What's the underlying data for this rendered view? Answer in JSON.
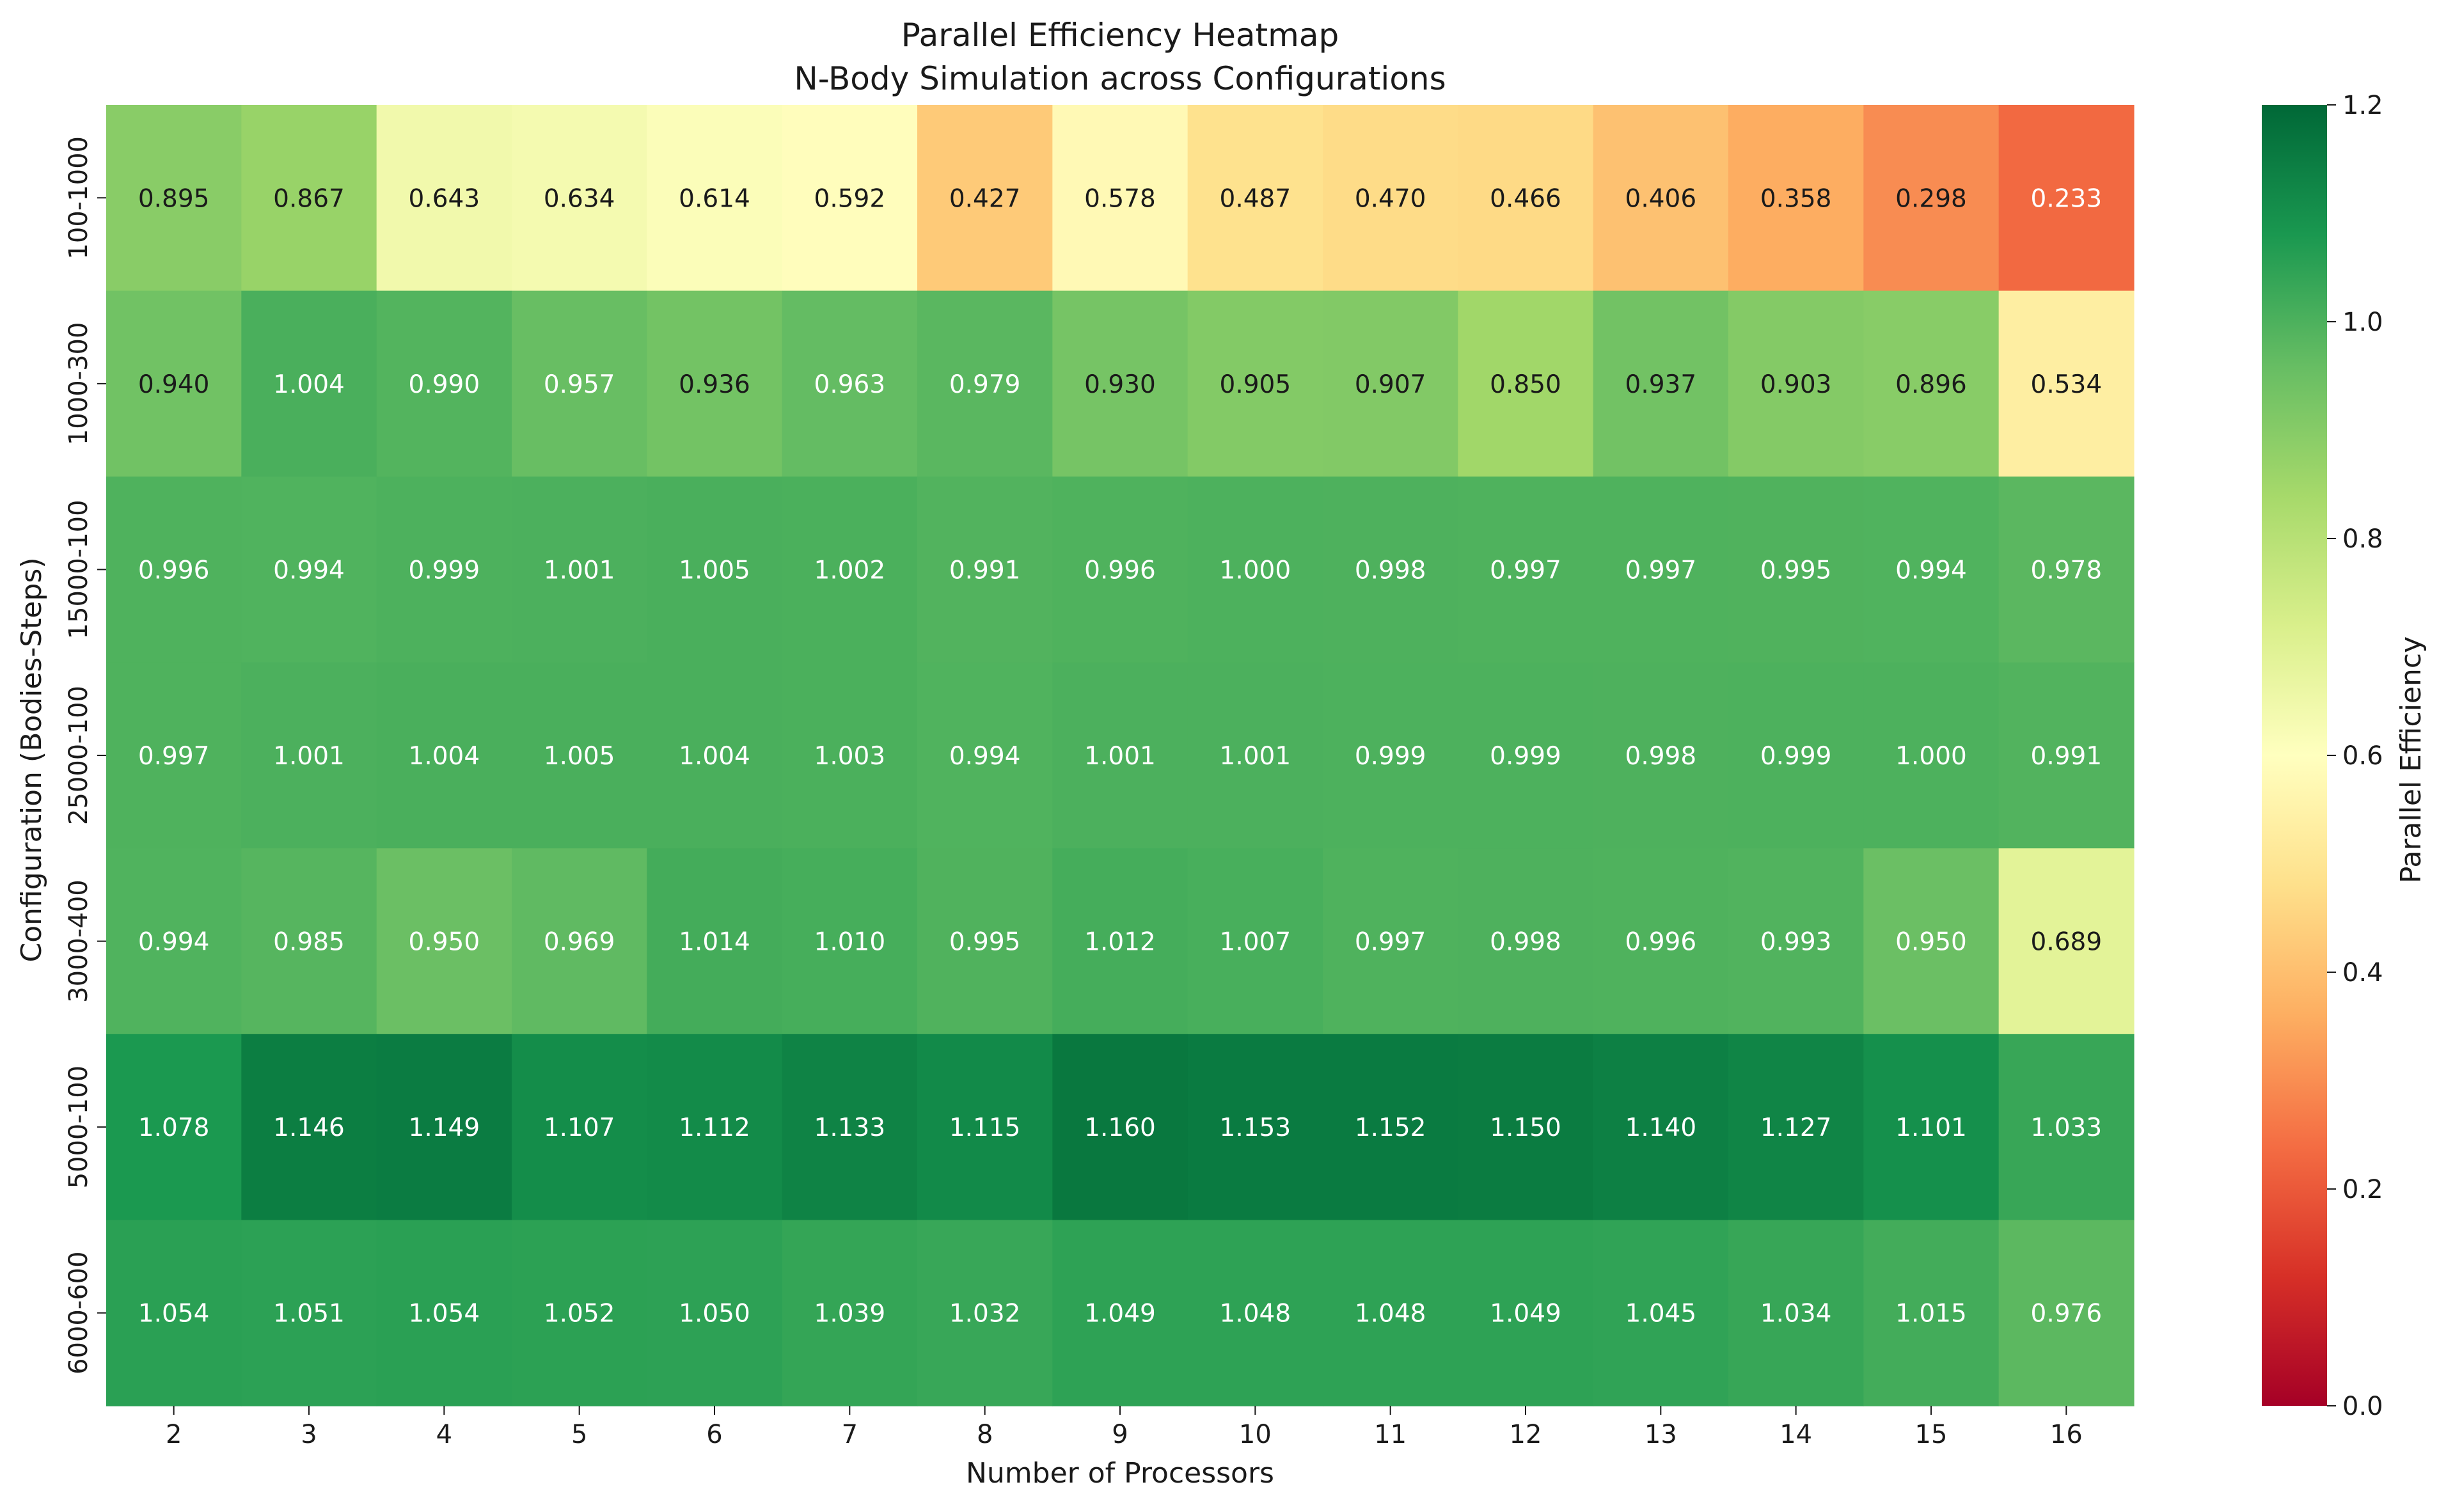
{
  "chart_data": {
    "type": "heatmap",
    "title": "Parallel Efficiency Heatmap",
    "subtitle": "N-Body Simulation across Configurations",
    "xlabel": "Number of Processors",
    "ylabel": "Configuration (Bodies-Steps)",
    "x": [
      "2",
      "3",
      "4",
      "5",
      "6",
      "7",
      "8",
      "9",
      "10",
      "11",
      "12",
      "13",
      "14",
      "15",
      "16"
    ],
    "y": [
      "100-1000",
      "1000-300",
      "15000-100",
      "25000-100",
      "3000-400",
      "5000-100",
      "6000-600"
    ],
    "values": [
      [
        0.895,
        0.867,
        0.643,
        0.634,
        0.614,
        0.592,
        0.427,
        0.578,
        0.487,
        0.47,
        0.466,
        0.406,
        0.358,
        0.298,
        0.233
      ],
      [
        0.94,
        1.004,
        0.99,
        0.957,
        0.936,
        0.963,
        0.979,
        0.93,
        0.905,
        0.907,
        0.85,
        0.937,
        0.903,
        0.896,
        0.534
      ],
      [
        0.996,
        0.994,
        0.999,
        1.001,
        1.005,
        1.002,
        0.991,
        0.996,
        1.0,
        0.998,
        0.997,
        0.997,
        0.995,
        0.994,
        0.978
      ],
      [
        0.997,
        1.001,
        1.004,
        1.005,
        1.004,
        1.003,
        0.994,
        1.001,
        1.001,
        0.999,
        0.999,
        0.998,
        0.999,
        1.0,
        0.991
      ],
      [
        0.994,
        0.985,
        0.95,
        0.969,
        1.014,
        1.01,
        0.995,
        1.012,
        1.007,
        0.997,
        0.998,
        0.996,
        0.993,
        0.95,
        0.689
      ],
      [
        1.078,
        1.146,
        1.149,
        1.107,
        1.112,
        1.133,
        1.115,
        1.16,
        1.153,
        1.152,
        1.15,
        1.14,
        1.127,
        1.101,
        1.033
      ],
      [
        1.054,
        1.051,
        1.054,
        1.052,
        1.05,
        1.039,
        1.032,
        1.049,
        1.048,
        1.048,
        1.049,
        1.045,
        1.034,
        1.015,
        0.976
      ]
    ],
    "colorbar": {
      "label": "Parallel Efficiency",
      "range": [
        0,
        1.2
      ],
      "ticks": [
        "0.0",
        "0.2",
        "0.4",
        "0.6",
        "0.8",
        "1.0",
        "1.2"
      ],
      "colormap": "RdYlGn"
    }
  }
}
